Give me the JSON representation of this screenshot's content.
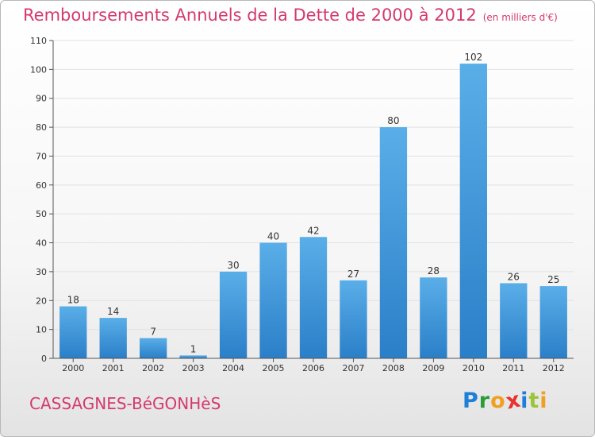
{
  "chart_data": {
    "type": "bar",
    "title": "Remboursements Annuels de la Dette de 2000 à 2012",
    "subtitle": "(en milliers d'€)",
    "categories": [
      "2000",
      "2001",
      "2002",
      "2003",
      "2004",
      "2005",
      "2006",
      "2007",
      "2008",
      "2009",
      "2010",
      "2011",
      "2012"
    ],
    "values": [
      18,
      14,
      7,
      1,
      30,
      40,
      42,
      27,
      80,
      28,
      102,
      26,
      25
    ],
    "ylim": [
      0,
      110
    ],
    "yticks": [
      0,
      10,
      20,
      30,
      40,
      50,
      60,
      70,
      80,
      90,
      100,
      110
    ],
    "xlabel": "",
    "ylabel": "",
    "bar_color": "#4a9fe0"
  },
  "town": "CASSAGNES-BéGONHèS",
  "logo": {
    "letters": [
      "P",
      "r",
      "o",
      "x",
      "i",
      "t",
      "i"
    ],
    "colors": [
      "#1e7fd8",
      "#2a9d3a",
      "#f0a020",
      "#e8322e",
      "#1e7fd8",
      "#9ac43a",
      "#f0a020"
    ]
  },
  "colors": {
    "accent": "#d43a6c"
  }
}
